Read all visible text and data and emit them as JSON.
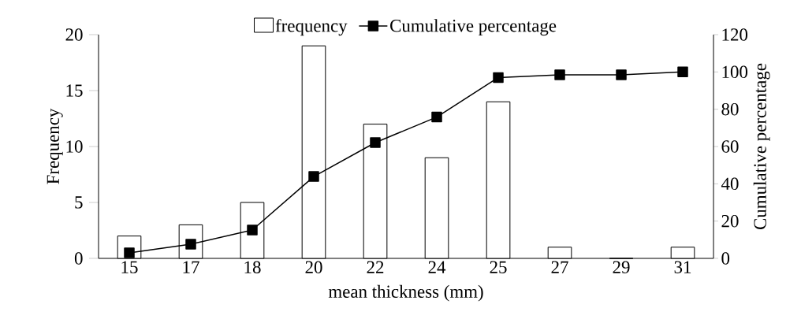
{
  "chart_data": {
    "type": "bar",
    "xlabel": "mean thickness (mm)",
    "ylabel": "Frequency",
    "y2label": "Cumulative percentage",
    "categories": [
      "15",
      "17",
      "18",
      "20",
      "22",
      "24",
      "25",
      "27",
      "29",
      "31"
    ],
    "series": [
      {
        "name": "frequency",
        "color": "#ffffff",
        "values": [
          2,
          3,
          5,
          19,
          12,
          9,
          14,
          1,
          0,
          1
        ]
      },
      {
        "name": "Cumulative percentage",
        "type": "line",
        "axis": "y2",
        "color": "#000000",
        "values": [
          3,
          7.6,
          15.2,
          43.9,
          62.1,
          75.8,
          97,
          98.5,
          98.5,
          100
        ]
      }
    ],
    "ylim": [
      0,
      20
    ],
    "yticks": [
      0,
      5,
      10,
      15,
      20
    ],
    "y2lim": [
      0,
      120
    ],
    "y2ticks": [
      0,
      20,
      40,
      60,
      80,
      100,
      120
    ],
    "marker": "square",
    "line_style": "solid",
    "legend": "top",
    "grid": false
  }
}
